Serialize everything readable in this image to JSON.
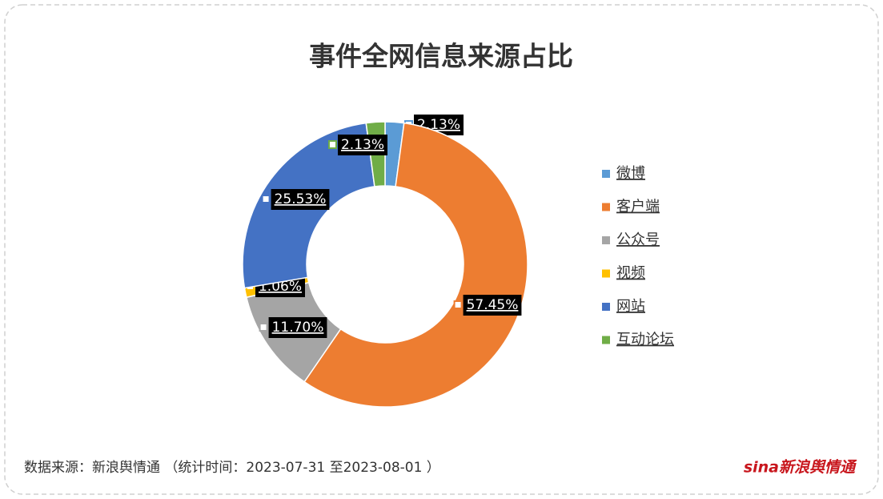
{
  "chart_data": {
    "type": "donut",
    "title": "事件全网信息来源占比",
    "categories": [
      "微博",
      "客户端",
      "公众号",
      "视频",
      "网站",
      "互动论坛"
    ],
    "values": [
      2.13,
      57.45,
      11.7,
      1.06,
      25.53,
      2.13
    ],
    "value_labels": [
      "2.13%",
      "57.45%",
      "11.70%",
      "1.06%",
      "25.53%",
      "2.13%"
    ],
    "colors": [
      "#5b9bd5",
      "#ed7d31",
      "#a5a5a5",
      "#ffc000",
      "#4472c4",
      "#70ad47"
    ],
    "legend": "right"
  },
  "source": "数据来源：新浪舆情通 （统计时间：2023-07-31 至2023-08-01 ）",
  "logo": "sina新浪舆情通"
}
